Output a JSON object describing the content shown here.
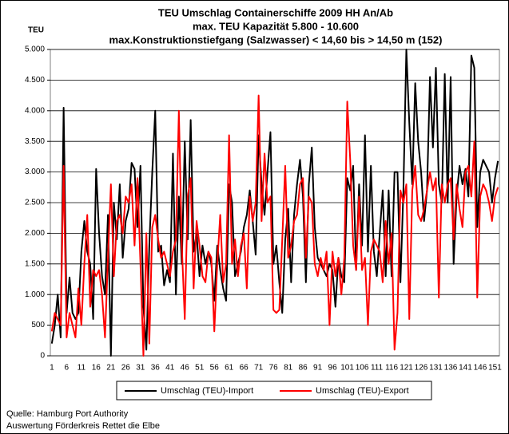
{
  "chart_data": {
    "type": "line",
    "title": "TEU Umschlag Containerschiffe 2009 HH An/Ab",
    "subtitle": [
      "max. TEU Kapazität  5.800 - 10.600",
      "max.Konstruktionstiefgang (Salzwasser) < 14,60 bis > 14,50 m (152)"
    ],
    "y_label": "TEU",
    "source": [
      "Quelle: Hamburg Port Authority",
      "Auswertung Förderkreis Rettet die Elbe"
    ],
    "categories": [
      "1",
      null,
      null,
      null,
      null,
      "6",
      null,
      null,
      null,
      null,
      "11",
      null,
      null,
      null,
      null,
      "16",
      null,
      null,
      null,
      null,
      "21",
      null,
      null,
      null,
      null,
      "26",
      null,
      null,
      null,
      null,
      "31",
      null,
      null,
      null,
      null,
      "36",
      null,
      null,
      null,
      null,
      "41",
      null,
      null,
      null,
      null,
      "46",
      null,
      null,
      null,
      null,
      "51",
      null,
      null,
      null,
      null,
      "56",
      null,
      null,
      null,
      null,
      "61",
      null,
      null,
      null,
      null,
      "66",
      null,
      null,
      null,
      null,
      "71",
      null,
      null,
      null,
      null,
      "76",
      null,
      null,
      null,
      null,
      "81",
      null,
      null,
      null,
      null,
      "86",
      null,
      null,
      null,
      null,
      "91",
      null,
      null,
      null,
      null,
      "96",
      null,
      null,
      null,
      null,
      "101",
      null,
      null,
      null,
      null,
      "106",
      null,
      null,
      null,
      null,
      "111",
      null,
      null,
      null,
      null,
      "116",
      null,
      null,
      null,
      null,
      "121",
      null,
      null,
      null,
      null,
      "126",
      null,
      null,
      null,
      null,
      "131",
      null,
      null,
      null,
      null,
      "136",
      null,
      null,
      null,
      null,
      "141",
      null,
      null,
      null,
      null,
      "146",
      null,
      null,
      null,
      null,
      "151",
      null
    ],
    "series": [
      {
        "name": "Umschlag (TEU)-Import",
        "color": "#000000",
        "values": [
          200,
          500,
          1000,
          300,
          4050,
          700,
          1280,
          700,
          600,
          700,
          1700,
          2200,
          1700,
          1500,
          600,
          3050,
          2000,
          1300,
          1000,
          2300,
          0,
          2500,
          1900,
          2800,
          1600,
          2200,
          2400,
          3150,
          3050,
          2100,
          3100,
          800,
          100,
          1800,
          3000,
          4000,
          1700,
          1800,
          1150,
          1400,
          1200,
          3300,
          1000,
          2600,
          1500,
          3500,
          1900,
          3850,
          1700,
          2000,
          1300,
          1800,
          1500,
          1700,
          1500,
          900,
          1800,
          1400,
          1100,
          900,
          2800,
          2500,
          1300,
          1500,
          1700,
          2100,
          2300,
          2700,
          2200,
          1650,
          3600,
          2800,
          2300,
          3000,
          3650,
          1500,
          1800,
          1200,
          700,
          1900,
          2400,
          1200,
          2300,
          2800,
          3200,
          2600,
          1200,
          2800,
          3400,
          2100,
          1600,
          1500,
          1400,
          1300,
          1500,
          1400,
          800,
          1600,
          1300,
          1200,
          2900,
          2700,
          3100,
          1400,
          2800,
          1800,
          3600,
          1700,
          3100,
          1700,
          1300,
          2000,
          2700,
          1300,
          2700,
          1300,
          3000,
          3000,
          1200,
          2700,
          5000,
          3800,
          2800,
          4450,
          3500,
          3000,
          2200,
          2700,
          4550,
          3400,
          4700,
          2800,
          2500,
          4600,
          2500,
          4550,
          1500,
          2600,
          3100,
          2800,
          3050,
          2600,
          4900,
          4700,
          2100,
          3000,
          3200,
          3100,
          3000,
          2500,
          2900,
          3180
        ]
      },
      {
        "name": "Umschlag (TEU)-Export",
        "color": "#ff0000",
        "values": [
          400,
          700,
          600,
          500,
          3100,
          300,
          700,
          500,
          300,
          1100,
          500,
          1500,
          2300,
          800,
          1400,
          1300,
          1400,
          1000,
          300,
          1600,
          2800,
          1300,
          2200,
          2300,
          2000,
          2600,
          2500,
          2800,
          1800,
          2900,
          1500,
          0,
          2000,
          200,
          2100,
          2300,
          1900,
          1600,
          1700,
          1500,
          1300,
          1700,
          1900,
          4000,
          1800,
          600,
          2600,
          2900,
          1100,
          2200,
          1800,
          1300,
          1200,
          1700,
          1600,
          400,
          1500,
          2300,
          1200,
          1500,
          3600,
          1500,
          1900,
          1300,
          1800,
          2000,
          1100,
          2600,
          2200,
          2500,
          4250,
          2200,
          3300,
          2500,
          2600,
          750,
          700,
          750,
          1900,
          3100,
          1600,
          1800,
          2200,
          2300,
          2800,
          2900,
          1600,
          2600,
          2500,
          1500,
          1300,
          1600,
          1400,
          1700,
          500,
          1700,
          1300,
          1600,
          1000,
          1600,
          4150,
          3200,
          1800,
          1400,
          2600,
          1400,
          1600,
          500,
          1700,
          1900,
          1800,
          1700,
          1200,
          2200,
          1500,
          2000,
          100,
          700,
          2700,
          2500,
          2800,
          600,
          2700,
          3100,
          2300,
          2200,
          2400,
          2700,
          3000,
          2700,
          2900,
          950,
          2800,
          2500,
          2800,
          2900,
          1900,
          2800,
          2400,
          2100,
          3000,
          3100,
          2600,
          3500,
          950,
          2600,
          2800,
          2700,
          2500,
          2200,
          2600,
          2750
        ]
      }
    ],
    "ylim": [
      0,
      5000
    ],
    "yticks": [
      0,
      {
        "value": 500,
        "label": "500"
      },
      {
        "value": 1000,
        "label": "1.000"
      },
      {
        "value": 1500,
        "label": "1.500"
      },
      {
        "value": 2000,
        "label": "2.000"
      },
      {
        "value": 2500,
        "label": "2.500"
      },
      {
        "value": 3000,
        "label": "3.000"
      },
      {
        "value": 3500,
        "label": "3.500"
      },
      {
        "value": 4000,
        "label": "4.000"
      },
      {
        "value": 4500,
        "label": "4.500"
      },
      {
        "value": 5000,
        "label": "5.000"
      }
    ],
    "grid": true,
    "legend": "bottom"
  }
}
